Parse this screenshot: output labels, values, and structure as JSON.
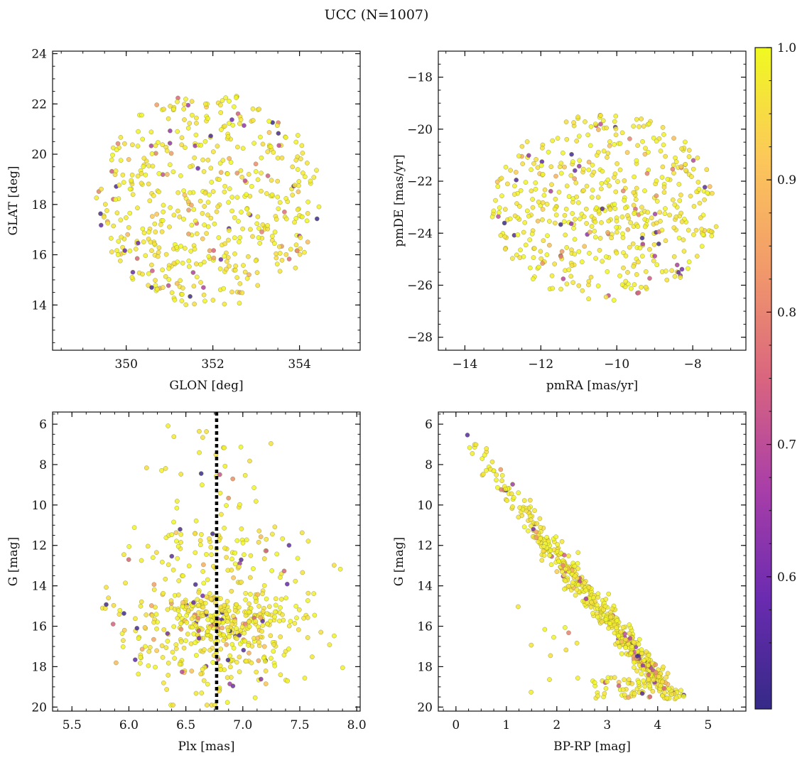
{
  "figure": {
    "title": "UCC (N=1007)"
  },
  "colorbar": {
    "min": 0.5,
    "max": 1.0,
    "ticks": [
      0.6,
      0.7,
      0.8,
      0.9,
      1.0
    ],
    "tick_labels": [
      "0.6",
      "0.7",
      "0.8",
      "0.9",
      "1.0"
    ],
    "colormap": [
      "#352a87",
      "#6a2bb0",
      "#a93ea8",
      "#d9657f",
      "#f29a6a",
      "#fcc85a",
      "#f0f921"
    ]
  },
  "chart_data": [
    {
      "id": "glon-glat",
      "type": "scatter",
      "xlabel": "GLON [deg]",
      "ylabel": "GLAT [deg]",
      "xlim": [
        348.3,
        355.4
      ],
      "ylim": [
        12.2,
        24.1
      ],
      "xticks": [
        350,
        352,
        354
      ],
      "xtick_labels": [
        "350",
        "352",
        "354"
      ],
      "yticks": [
        14,
        16,
        18,
        20,
        22,
        24
      ],
      "ytick_labels": [
        "14",
        "16",
        "18",
        "20",
        "22",
        "24"
      ],
      "cloud": {
        "shape": "ellipse",
        "cx": 351.9,
        "cy": 18.2,
        "rx": 2.6,
        "ry": 4.3,
        "n": 520,
        "dense": 0.5
      }
    },
    {
      "id": "pmra-pmde",
      "type": "scatter",
      "xlabel": "pmRA [mas/yr]",
      "ylabel": "pmDE [mas/yr]",
      "xlim": [
        -14.7,
        -6.6
      ],
      "ylim": [
        -28.5,
        -17.0
      ],
      "xticks": [
        -14,
        -12,
        -10,
        -8
      ],
      "xtick_labels": [
        "−14",
        "−12",
        "−10",
        "−8"
      ],
      "yticks": [
        -28,
        -26,
        -24,
        -22,
        -20,
        -18
      ],
      "ytick_labels": [
        "−28",
        "−26",
        "−24",
        "−22",
        "−20",
        "−18"
      ],
      "cloud": {
        "shape": "ellipse",
        "cx": -10.3,
        "cy": -23.0,
        "rx": 3.0,
        "ry": 3.6,
        "n": 520,
        "dense": 0.6
      }
    },
    {
      "id": "plx-g",
      "type": "scatter",
      "xlabel": "Plx [mas]",
      "ylabel": "G [mag]",
      "xlim": [
        5.33,
        8.03
      ],
      "ylim": [
        20.2,
        5.4
      ],
      "xticks": [
        5.5,
        6.0,
        6.5,
        7.0,
        7.5,
        8.0
      ],
      "xtick_labels": [
        "5.5",
        "6.0",
        "6.5",
        "7.0",
        "7.5",
        "8.0"
      ],
      "yticks": [
        6,
        8,
        10,
        12,
        14,
        16,
        18,
        20
      ],
      "ytick_labels": [
        "6",
        "8",
        "10",
        "12",
        "14",
        "16",
        "18",
        "20"
      ],
      "vline": 6.77,
      "cloud": {
        "shape": "plx",
        "n": 600
      }
    },
    {
      "id": "bprp-g",
      "type": "scatter",
      "xlabel": "BP-RP [mag]",
      "ylabel": "G [mag]",
      "xlim": [
        -0.35,
        5.75
      ],
      "ylim": [
        20.2,
        5.4
      ],
      "xticks": [
        0,
        1,
        2,
        3,
        4,
        5
      ],
      "xtick_labels": [
        "0",
        "1",
        "2",
        "3",
        "4",
        "5"
      ],
      "yticks": [
        6,
        8,
        10,
        12,
        14,
        16,
        18,
        20
      ],
      "ytick_labels": [
        "6",
        "8",
        "10",
        "12",
        "14",
        "16",
        "18",
        "20"
      ],
      "cloud": {
        "shape": "cmd",
        "n": 620
      }
    }
  ]
}
